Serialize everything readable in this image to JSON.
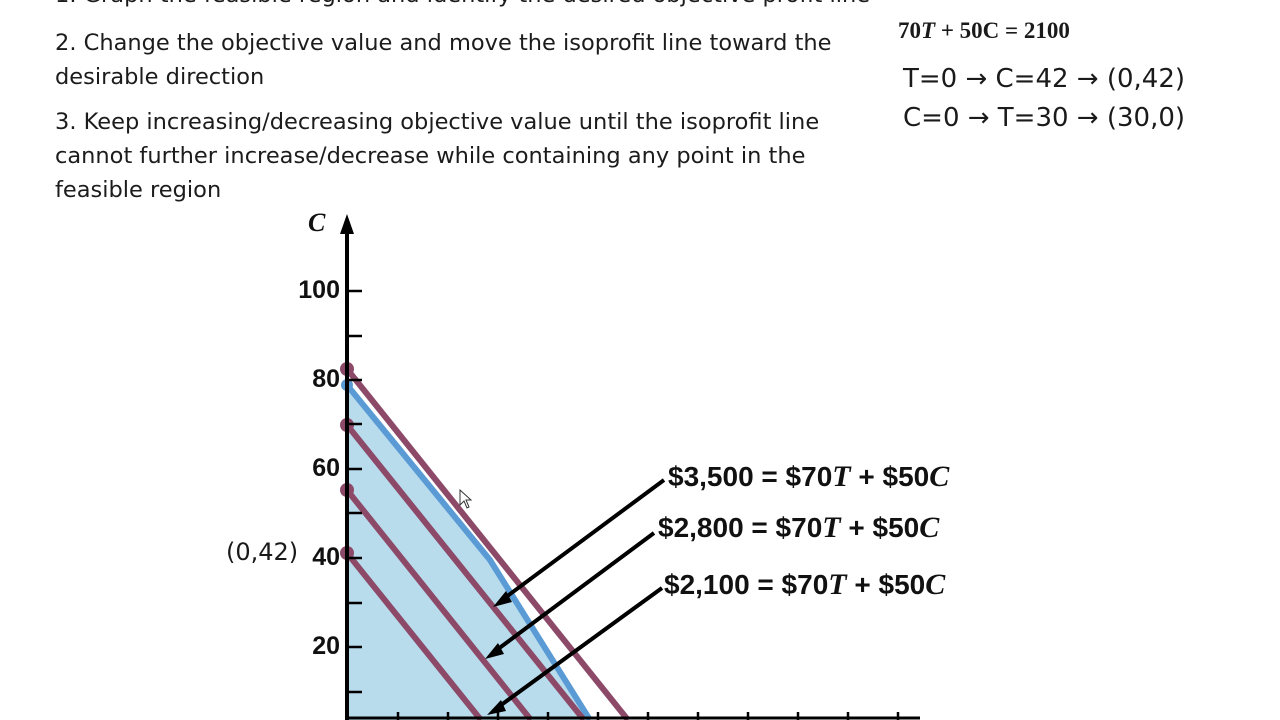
{
  "steps": {
    "step1_partial": "1. Graph the feasible region and identify the desired objective profit line",
    "step2": "2. Change the objective value and move the isoprofit line toward the desirable direction",
    "step3": "3. Keep increasing/decreasing objective value until the isoprofit line cannot further increase/decrease while containing any point in the feasible region"
  },
  "side_calc": {
    "equation_num": "70",
    "equation_var1": "T",
    "equation_mid": " + 50",
    "equation_var2": "C",
    "equation_rhs": " = 2100",
    "line1": "T=0 → C=42 → (0,42)",
    "line2": "C=0 → T=30 → (30,0)"
  },
  "point_label": "(0,42)",
  "objective_lines": [
    {
      "lhs": "$3,500 = $70",
      "var1": "T",
      "mid": " + $50",
      "var2": "C"
    },
    {
      "lhs": "$2,800 = $70",
      "var1": "T",
      "mid": " + $50",
      "var2": "C"
    },
    {
      "lhs": "$2,100 = $70",
      "var1": "T",
      "mid": " + $50",
      "var2": "C"
    }
  ],
  "axis": {
    "y_label": "C",
    "y_ticks": [
      "100",
      "80",
      "60",
      "40",
      "20"
    ]
  },
  "colors": {
    "feasible_fill": "#b8dcec",
    "constraint_line": "#5b9bd5",
    "isoprofit_line": "#8c4a68",
    "arrow": "#000000"
  }
}
